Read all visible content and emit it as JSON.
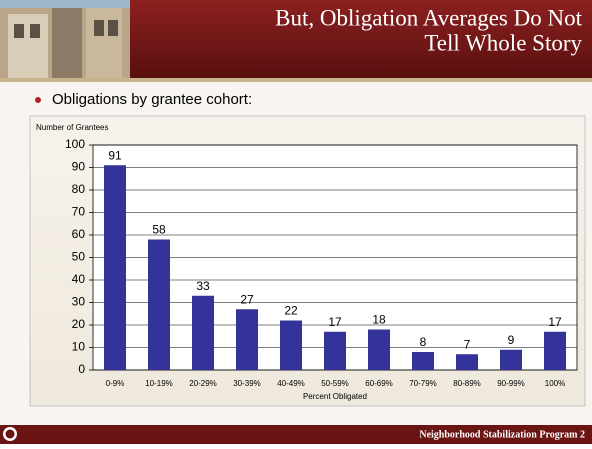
{
  "slide": {
    "title_lines": [
      "But, Obligation Averages Do Not",
      "Tell Whole Story"
    ],
    "bullet": "Obligations by grantee cohort:",
    "footer": "Neighborhood Stabilization Program 2"
  },
  "chart_data": {
    "type": "bar",
    "y_label": "Number of Grantees",
    "x_label": "Percent Obligated",
    "categories": [
      "0-9%",
      "10-19%",
      "20-29%",
      "30-39%",
      "40-49%",
      "50-59%",
      "60-69%",
      "70-79%",
      "80-89%",
      "90-99%",
      "100%"
    ],
    "values": [
      91,
      58,
      33,
      27,
      22,
      17,
      18,
      8,
      7,
      9,
      17
    ],
    "color": "#333399",
    "ylim": [
      0,
      100
    ],
    "yticks": [
      0,
      10,
      20,
      30,
      40,
      50,
      60,
      70,
      80,
      90,
      100
    ],
    "grid": true
  }
}
